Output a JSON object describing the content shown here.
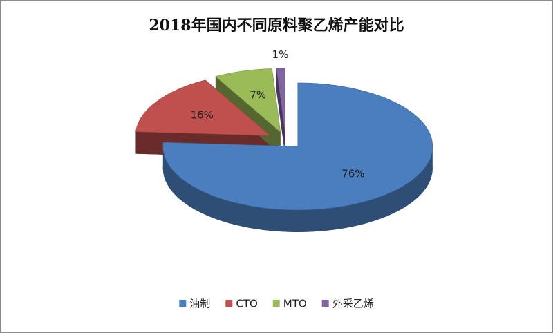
{
  "chart_data": {
    "type": "pie",
    "title": "2018年国内不同原料聚乙烯产能对比",
    "categories": [
      "油制",
      "CTO",
      "MTO",
      "外采乙烯"
    ],
    "values": [
      76,
      16,
      7,
      1
    ],
    "value_labels": [
      "76%",
      "16%",
      "7%",
      "1%"
    ],
    "colors": [
      "#4a7ebf",
      "#c0504d",
      "#9bbb59",
      "#8064a2"
    ],
    "legend": "bottom"
  }
}
